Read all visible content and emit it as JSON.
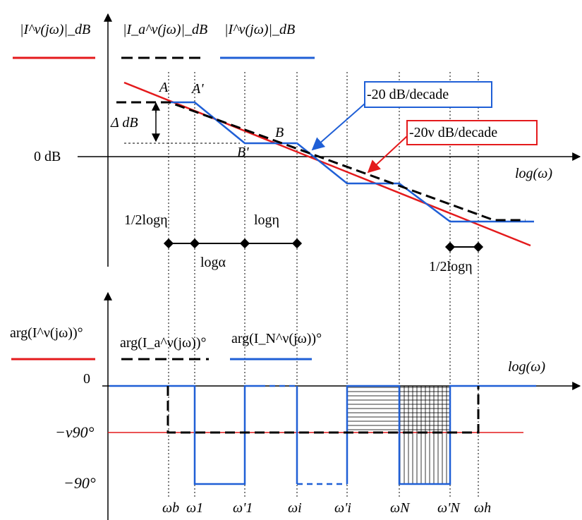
{
  "top_plot": {
    "legend": [
      {
        "label": "|I^ν(jω)|_dB",
        "color": "#e41a1c",
        "style": "solid"
      },
      {
        "label": "|I_a^ν(jω)|_dB",
        "color": "#000000",
        "style": "dashed"
      },
      {
        "label": "|I^ν(jω)|_dB",
        "color": "#1f5fd6",
        "style": "solid"
      }
    ],
    "zero_label": "0 dB",
    "xlabel": "log(ω)",
    "delta_label": "Δ dB",
    "points": [
      "A",
      "A'",
      "B",
      "B'"
    ],
    "annotations": {
      "blue_slope": "-20 dB/decade",
      "red_slope": "-20ν dB/decade",
      "half_log_eta_left": "1/2logη",
      "log_eta": "logη",
      "log_alpha": "logα",
      "half_log_eta_right": "1/2logη"
    },
    "colors": {
      "red": "#e41a1c",
      "blue": "#1f5fd6",
      "black": "#000000"
    }
  },
  "bottom_plot": {
    "legend": [
      {
        "label": "arg(I^ν(jω))°",
        "color": "#e41a1c",
        "style": "solid"
      },
      {
        "label": "arg(I_a^ν(jω))°",
        "color": "#000000",
        "style": "dashed"
      },
      {
        "label": "arg(I_N^ν(jω))°",
        "color": "#1f5fd6",
        "style": "solid"
      }
    ],
    "xlabel": "log(ω)",
    "y_labels": [
      "0",
      "−ν90°",
      "−90°"
    ],
    "x_labels": [
      "ωb",
      "ω1",
      "ω'1",
      "ωi",
      "ω'i",
      "ωN",
      "ω'N",
      "ωh"
    ]
  }
}
